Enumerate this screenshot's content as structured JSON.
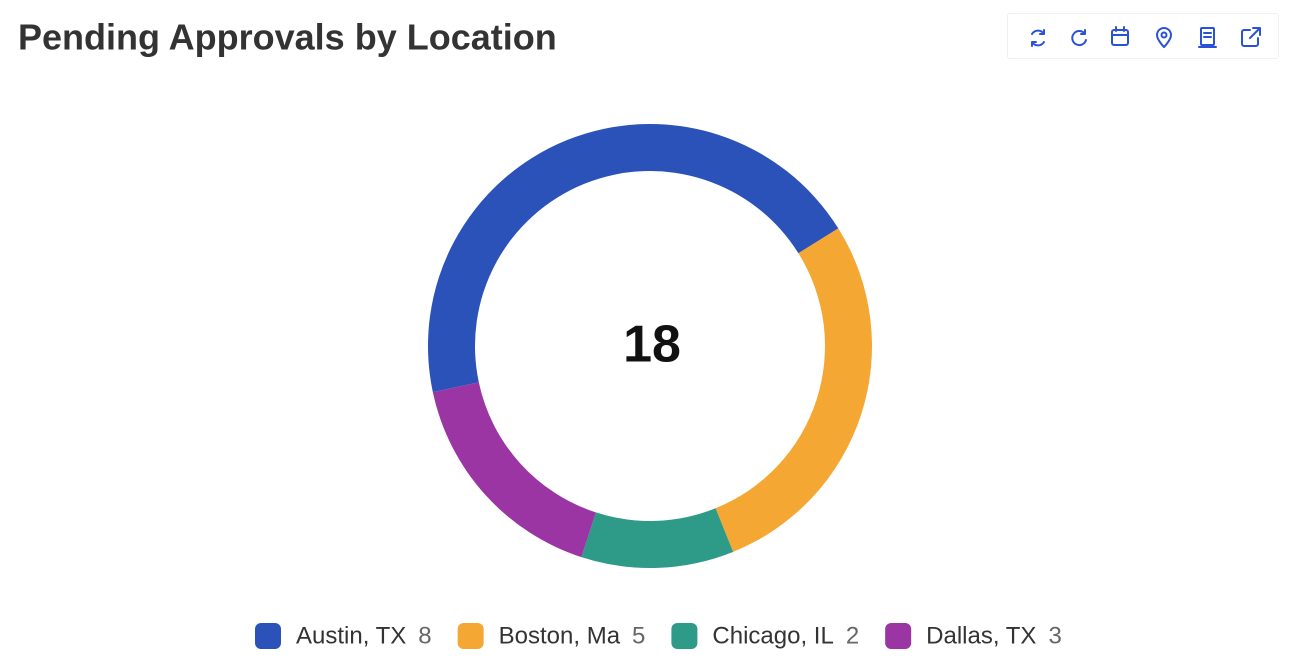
{
  "chart_data": {
    "type": "donut",
    "title": "Pending Approvals by Location",
    "categories": [
      "Austin, TX",
      "Boston, Ma",
      "Chicago, IL",
      "Dallas, TX"
    ],
    "values": [
      8,
      5,
      2,
      3
    ],
    "colors": [
      "#2a52b8",
      "#f5a733",
      "#2e9a88",
      "#9b35a3"
    ],
    "total": 18,
    "legend": "bottom"
  }
}
